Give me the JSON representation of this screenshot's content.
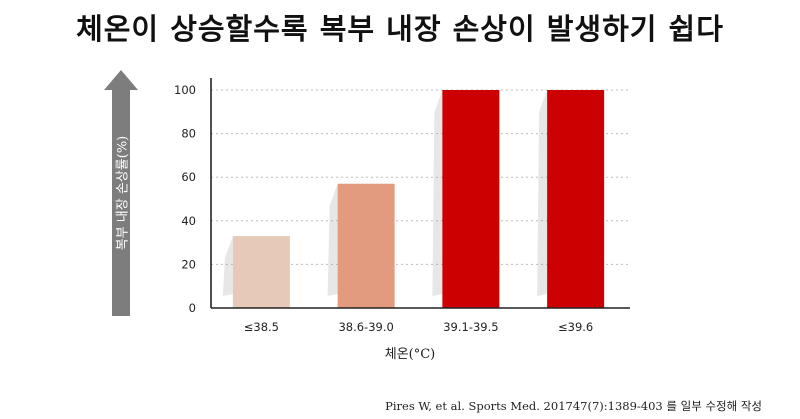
{
  "title": "체온이 상승할수록 복부 내장 손상이 발생하기 쉽다",
  "source": {
    "reference": "Pires W, et al. Sports Med. 201747(7):1389-403",
    "note": "를 일부 수정해 작성"
  },
  "chart_data": {
    "type": "bar",
    "categories": [
      "≤38.5",
      "38.6-39.0",
      "39.1-39.5",
      "≤39.6"
    ],
    "values": [
      33,
      57,
      100,
      100
    ],
    "title": "체온이 상승할수록 복부 내장 손상이 발생하기 쉽다",
    "xlabel": "체온(°C)",
    "ylabel": "복부 내장 손상률(%)",
    "ylim": [
      0,
      100
    ],
    "yticks": [
      0,
      20,
      40,
      60,
      80,
      100
    ],
    "grid": true,
    "colors": [
      "#e7c9b8",
      "#e29b7f",
      "#cc0000",
      "#cc0000"
    ],
    "axis_arrow_color": "#7d7d7d"
  }
}
